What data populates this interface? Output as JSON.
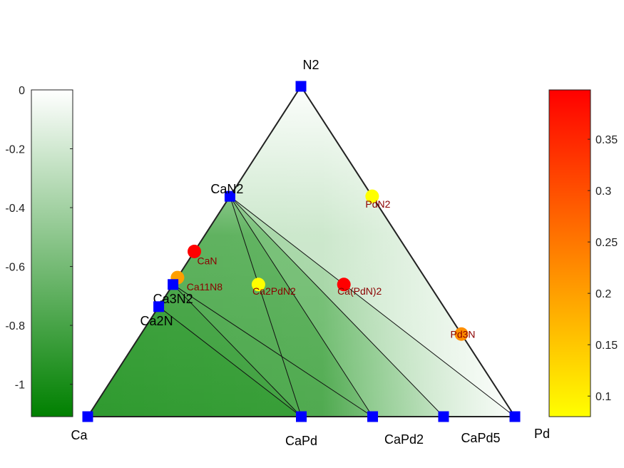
{
  "chart_data": {
    "type": "ternary-phase-diagram",
    "corners": {
      "top": "N2",
      "left": "Ca",
      "right": "Pd"
    },
    "stable_phases": [
      {
        "name": "N2",
        "a": 0,
        "b": 1
      },
      {
        "name": "Ca",
        "a": 0,
        "b": 0
      },
      {
        "name": "Pd",
        "a": 1,
        "b": 0
      },
      {
        "name": "CaN2",
        "a": 0,
        "b": 0.667
      },
      {
        "name": "Ca3N2",
        "a": 0,
        "b": 0.4
      },
      {
        "name": "Ca2N",
        "a": 0,
        "b": 0.333
      },
      {
        "name": "CaPd",
        "a": 0.5,
        "b": 0
      },
      {
        "name": "CaPd2",
        "a": 0.667,
        "b": 0
      },
      {
        "name": "CaPd5",
        "a": 0.833,
        "b": 0
      }
    ],
    "tie_lines": [
      [
        "CaN2",
        "CaPd"
      ],
      [
        "CaN2",
        "CaPd2"
      ],
      [
        "CaN2",
        "CaPd5"
      ],
      [
        "CaN2",
        "Pd"
      ],
      [
        "Ca3N2",
        "CaPd"
      ],
      [
        "Ca3N2",
        "CaPd2"
      ],
      [
        "Ca2N",
        "CaPd"
      ]
    ],
    "unstable_phases": [
      {
        "name": "CaN",
        "a": 0,
        "b": 0.5,
        "e_above_hull": 0.4
      },
      {
        "name": "Ca11N8",
        "a": 0,
        "b": 0.421,
        "e_above_hull": 0.2
      },
      {
        "name": "Ca2PdN2",
        "a": 0.2,
        "b": 0.4,
        "e_above_hull": 0.08
      },
      {
        "name": "Ca(PdN)2",
        "a": 0.4,
        "b": 0.4,
        "e_above_hull": 0.4
      },
      {
        "name": "PdN2",
        "a": 0.333,
        "b": 0.667,
        "e_above_hull": 0.08
      },
      {
        "name": "Pd3N",
        "a": 0.75,
        "b": 0.25,
        "e_above_hull": 0.22
      }
    ],
    "left_colorbar": {
      "ticks": [
        "0",
        "-0.2",
        "-0.4",
        "-0.6",
        "-0.8",
        "-1"
      ],
      "tick_values": [
        0,
        -0.2,
        -0.4,
        -0.6,
        -0.8,
        -1
      ],
      "range": [
        -1.11,
        0
      ],
      "color_top": "#ffffff",
      "color_bottom": "#008000"
    },
    "right_colorbar": {
      "ticks": [
        "0.35",
        "0.3",
        "0.25",
        "0.2",
        "0.15",
        "0.1"
      ],
      "tick_values": [
        0.35,
        0.3,
        0.25,
        0.2,
        0.15,
        0.1
      ],
      "range": [
        0.08,
        0.398
      ],
      "color_top": "#ff0000",
      "color_mid": "#ff8000",
      "color_bottom": "#ffff00"
    }
  }
}
